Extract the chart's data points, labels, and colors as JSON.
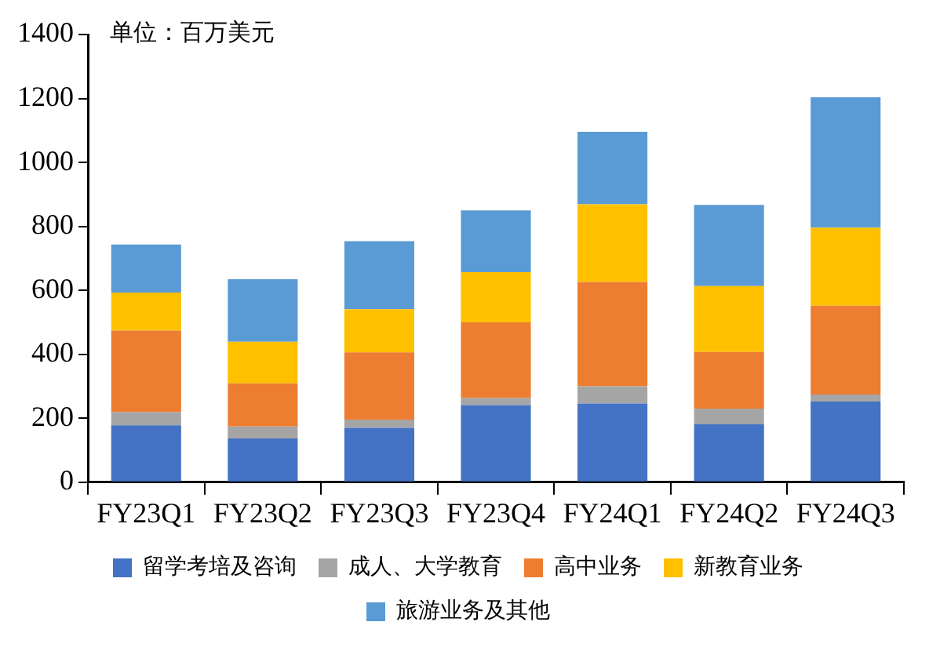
{
  "chart_data": {
    "type": "bar",
    "stacked": true,
    "categories": [
      "FY23Q1",
      "FY23Q2",
      "FY23Q3",
      "FY23Q4",
      "FY24Q1",
      "FY24Q2",
      "FY24Q3"
    ],
    "series": [
      {
        "name": "留学考培及咨询",
        "color": "#4472c4",
        "values": [
          178,
          137,
          170,
          241,
          246,
          181,
          252
        ]
      },
      {
        "name": "成人、大学教育",
        "color": "#a5a5a5",
        "values": [
          41,
          37,
          26,
          22,
          54,
          49,
          22
        ]
      },
      {
        "name": "高中业务",
        "color": "#ed7d31",
        "values": [
          255,
          135,
          210,
          237,
          326,
          177,
          278
        ]
      },
      {
        "name": "新教育业务",
        "color": "#ffc000",
        "values": [
          119,
          130,
          135,
          157,
          243,
          206,
          244
        ]
      },
      {
        "name": "旅游业务及其他",
        "color": "#5b9bd5",
        "values": [
          150,
          196,
          213,
          193,
          227,
          254,
          408
        ]
      }
    ],
    "ylim": [
      0,
      1400
    ],
    "yticks": [
      0,
      200,
      400,
      600,
      800,
      1000,
      1200,
      1400
    ],
    "grid": false,
    "legend": "bottom",
    "annotations": [
      "单位：百万美元"
    ]
  }
}
